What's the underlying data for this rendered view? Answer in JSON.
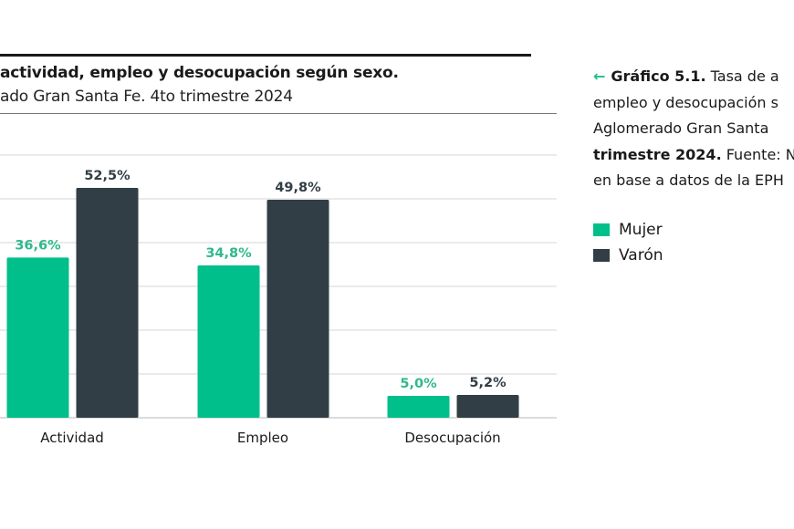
{
  "chart_data": {
    "type": "bar",
    "title": "actividad, empleo y desocupación según sexo.",
    "subtitle": "ado Gran Santa Fe. 4to trimestre 2024",
    "categories": [
      "Actividad",
      "Empleo",
      "Desocupación"
    ],
    "series": [
      {
        "name": "Mujer",
        "color": "#00bf8a",
        "label_color": "#2fb88d",
        "values": [
          36.6,
          34.8,
          5.0
        ],
        "labels": [
          "36,6%",
          "34,8%",
          "5,0%"
        ]
      },
      {
        "name": "Varón",
        "color": "#313e45",
        "label_color": "#313e45",
        "values": [
          52.5,
          49.8,
          5.2
        ],
        "labels": [
          "52,5%",
          "49,8%",
          "5,2%"
        ]
      }
    ],
    "ylim": [
      0,
      60
    ],
    "gridlines": [
      0,
      10,
      20,
      30,
      40,
      50,
      60
    ],
    "grid": true,
    "legend": "right"
  },
  "caption": {
    "arrow_icon": "arrow-left-icon",
    "lines": [
      {
        "bold": "Gráfico 5.1.",
        "text": " Tasa de a"
      },
      {
        "bold": "",
        "text": "empleo y desocupación s"
      },
      {
        "bold": "",
        "text": "Aglomerado Gran Santa"
      },
      {
        "bold": "trimestre 2024.",
        "text": " Fuente: N"
      },
      {
        "bold": "",
        "text": "en base a datos de la EPH"
      }
    ]
  }
}
